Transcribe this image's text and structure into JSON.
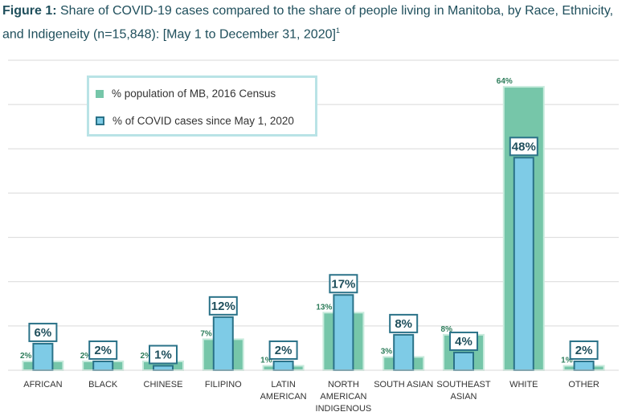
{
  "title": {
    "lead": "Figure 1:",
    "text": " Share of COVID-19 cases compared to the share of people living in Manitoba, by Race, Ethnicity, and Indigeneity (n=15,848): [May 1 to December 31, 2020]",
    "sup": "1"
  },
  "chart_data": {
    "type": "bar",
    "categories": [
      [
        "AFRICAN"
      ],
      [
        "BLACK"
      ],
      [
        "CHINESE"
      ],
      [
        "FILIPINO"
      ],
      [
        "LATIN",
        "AMERICAN"
      ],
      [
        "NORTH",
        "AMERICAN",
        "INDIGENOUS"
      ],
      [
        "SOUTH ASIAN"
      ],
      [
        "SOUTHEAST",
        "ASIAN"
      ],
      [
        "WHITE"
      ],
      [
        "OTHER"
      ]
    ],
    "series": [
      {
        "name": "% population of MB, 2016 Census",
        "values": [
          2,
          2,
          2,
          7,
          1,
          13,
          3,
          8,
          64,
          1
        ],
        "labels": [
          "2%",
          "2%",
          "2%",
          "7%",
          "1%",
          "13%",
          "3%",
          "8%",
          "64%",
          "1%"
        ]
      },
      {
        "name": "% of COVID cases since May 1, 2020",
        "values": [
          6,
          2,
          1,
          12,
          2,
          17,
          8,
          4,
          48,
          2
        ],
        "labels": [
          "6%",
          "2%",
          "1%",
          "12%",
          "2%",
          "17%",
          "8%",
          "4%",
          "48%",
          "2%"
        ]
      }
    ],
    "ylim": [
      0,
      70
    ],
    "grid": true,
    "legend": "top-left",
    "colors": {
      "population": "#76c6a9",
      "population_border": "#c8ebdd",
      "covid": "#7ecbe6",
      "covid_border": "#2a7288",
      "label_text": "#1f4f5c",
      "label_border": "#2a7288",
      "grid": "#d9d9d9"
    }
  }
}
